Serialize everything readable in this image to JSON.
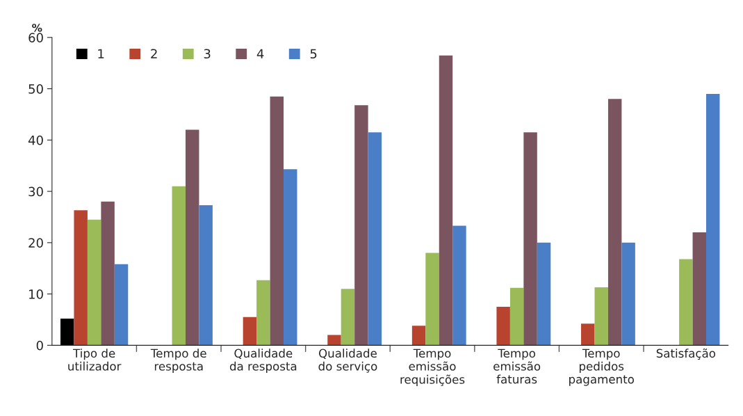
{
  "chart_data": {
    "type": "bar",
    "ylabel": "%",
    "categories": [
      "Tipo de\nutilizador",
      "Tempo de\nresposta",
      "Qualidade\nda resposta",
      "Qualidade\ndo serviço",
      "Tempo\nemissão\nrequisições",
      "Tempo\nemissão\nfaturas",
      "Tempo\npedidos\npagamento",
      "Satisfação"
    ],
    "series": [
      {
        "name": "1",
        "color": "#000000",
        "values": [
          5.2,
          0,
          0,
          0,
          0,
          0,
          0,
          0
        ]
      },
      {
        "name": "2",
        "color": "#b8432f",
        "values": [
          26.3,
          0,
          5.5,
          2,
          3.8,
          7.5,
          4.2,
          0
        ]
      },
      {
        "name": "3",
        "color": "#9bbb59",
        "values": [
          24.5,
          31,
          12.7,
          11,
          18,
          11.2,
          11.3,
          16.8
        ]
      },
      {
        "name": "4",
        "color": "#7a5560",
        "values": [
          28,
          42,
          48.5,
          46.8,
          56.5,
          41.5,
          48,
          22
        ]
      },
      {
        "name": "5",
        "color": "#4a7fc8",
        "values": [
          15.8,
          27.3,
          34.3,
          41.5,
          23.3,
          20,
          20,
          49
        ]
      }
    ],
    "ylim": [
      0,
      60
    ],
    "yticks": [
      0,
      10,
      20,
      30,
      40,
      50,
      60
    ],
    "grid": false,
    "legend": "top left"
  }
}
